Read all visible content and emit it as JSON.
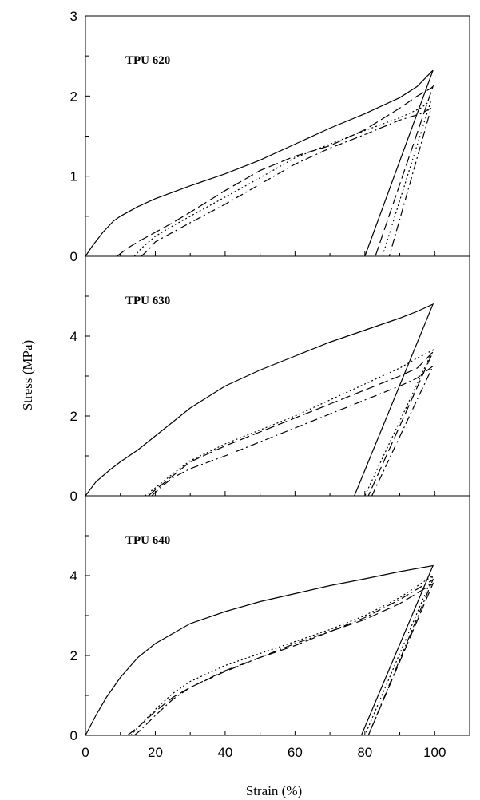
{
  "chart_data": {
    "type": "line",
    "xlabel": "Strain (%)",
    "ylabel": "Stress (MPa)",
    "xlim": [
      0,
      110
    ],
    "x_ticks": [
      0,
      20,
      40,
      60,
      80,
      100
    ],
    "x_minor_ticks": [
      10,
      30,
      50,
      70,
      90
    ],
    "series_styles": [
      {
        "dash": ""
      },
      {
        "dash": "12,5"
      },
      {
        "dash": "2,3"
      },
      {
        "dash": "10,4,2,4"
      }
    ],
    "panels": [
      {
        "title": "TPU 620",
        "ylim": [
          0,
          3
        ],
        "y_ticks": [
          0,
          1,
          2,
          3
        ],
        "y_minor_ticks": [
          0.5,
          1.5,
          2.5
        ],
        "series": [
          {
            "x": [
              0,
              2,
              5,
              8,
              10,
              15,
              20,
              30,
              40,
              50,
              60,
              70,
              80,
              90,
              95,
              99,
              99.5,
              80
            ],
            "y": [
              0,
              0.13,
              0.3,
              0.44,
              0.5,
              0.62,
              0.72,
              0.88,
              1.03,
              1.2,
              1.4,
              1.6,
              1.78,
              1.98,
              2.12,
              2.3,
              2.32,
              0
            ]
          },
          {
            "x": [
              9,
              12,
              15,
              20,
              25,
              30,
              40,
              50,
              60,
              70,
              80,
              90,
              95,
              99,
              99.5,
              83
            ],
            "y": [
              0,
              0.1,
              0.18,
              0.3,
              0.42,
              0.55,
              0.82,
              1.07,
              1.25,
              1.38,
              1.58,
              1.85,
              2.0,
              2.1,
              2.12,
              0
            ]
          },
          {
            "x": [
              14,
              16,
              20,
              25,
              30,
              40,
              50,
              60,
              70,
              80,
              90,
              96,
              99,
              85
            ],
            "y": [
              0,
              0.1,
              0.25,
              0.38,
              0.5,
              0.74,
              0.98,
              1.23,
              1.4,
              1.57,
              1.73,
              1.85,
              1.95,
              0
            ]
          },
          {
            "x": [
              16,
              18,
              20,
              25,
              30,
              40,
              50,
              60,
              70,
              80,
              90,
              96,
              99,
              87
            ],
            "y": [
              0,
              0.08,
              0.18,
              0.3,
              0.42,
              0.65,
              0.9,
              1.15,
              1.35,
              1.52,
              1.7,
              1.78,
              1.85,
              0
            ]
          }
        ]
      },
      {
        "title": "TPU 630",
        "ylim": [
          0,
          6
        ],
        "y_ticks": [
          0,
          2,
          4
        ],
        "y_minor_ticks": [
          1,
          3,
          5
        ],
        "series": [
          {
            "x": [
              0,
              3,
              7,
              10,
              15,
              20,
              30,
              40,
              50,
              60,
              70,
              80,
              90,
              95,
              99.5,
              77
            ],
            "y": [
              0,
              0.35,
              0.65,
              0.85,
              1.15,
              1.5,
              2.2,
              2.75,
              3.15,
              3.5,
              3.85,
              4.15,
              4.45,
              4.62,
              4.8,
              0
            ]
          },
          {
            "x": [
              18,
              20,
              25,
              30,
              40,
              50,
              60,
              70,
              80,
              90,
              95,
              99.5,
              81
            ],
            "y": [
              0,
              0.15,
              0.5,
              0.85,
              1.25,
              1.6,
              1.95,
              2.3,
              2.65,
              3.0,
              3.2,
              3.6,
              0
            ]
          },
          {
            "x": [
              17,
              20,
              25,
              30,
              40,
              50,
              60,
              70,
              80,
              90,
              95,
              99.5,
              80
            ],
            "y": [
              0,
              0.2,
              0.55,
              0.88,
              1.3,
              1.65,
              2.0,
              2.4,
              2.8,
              3.2,
              3.45,
              3.65,
              0
            ]
          },
          {
            "x": [
              19,
              22,
              25,
              30,
              40,
              50,
              60,
              70,
              80,
              90,
              95,
              99.5,
              82
            ],
            "y": [
              0,
              0.25,
              0.45,
              0.68,
              1.0,
              1.35,
              1.7,
              2.05,
              2.4,
              2.75,
              2.95,
              3.25,
              0
            ]
          }
        ]
      },
      {
        "title": "TPU 640",
        "ylim": [
          0,
          6
        ],
        "y_ticks": [
          0,
          2,
          4
        ],
        "y_minor_ticks": [
          1,
          3,
          5
        ],
        "series": [
          {
            "x": [
              0,
              3,
              6,
              10,
              15,
              20,
              30,
              40,
              50,
              60,
              70,
              80,
              90,
              99.5,
              79
            ],
            "y": [
              0,
              0.5,
              0.95,
              1.45,
              1.95,
              2.3,
              2.8,
              3.1,
              3.35,
              3.55,
              3.75,
              3.92,
              4.1,
              4.25,
              0
            ]
          },
          {
            "x": [
              12,
              15,
              20,
              25,
              30,
              40,
              50,
              60,
              70,
              80,
              90,
              99.5,
              81
            ],
            "y": [
              0,
              0.2,
              0.6,
              0.95,
              1.2,
              1.6,
              1.95,
              2.25,
              2.6,
              2.9,
              3.3,
              3.8,
              0
            ]
          },
          {
            "x": [
              13,
              15,
              20,
              25,
              30,
              40,
              50,
              60,
              70,
              80,
              90,
              99.5,
              80
            ],
            "y": [
              0,
              0.2,
              0.65,
              1.05,
              1.35,
              1.75,
              2.05,
              2.35,
              2.65,
              3.0,
              3.45,
              4.0,
              0
            ]
          },
          {
            "x": [
              14,
              16,
              20,
              25,
              30,
              40,
              50,
              60,
              70,
              80,
              90,
              99.5,
              81
            ],
            "y": [
              0,
              0.15,
              0.5,
              0.9,
              1.2,
              1.62,
              1.95,
              2.3,
              2.6,
              2.95,
              3.4,
              3.9,
              0
            ]
          }
        ]
      }
    ]
  }
}
